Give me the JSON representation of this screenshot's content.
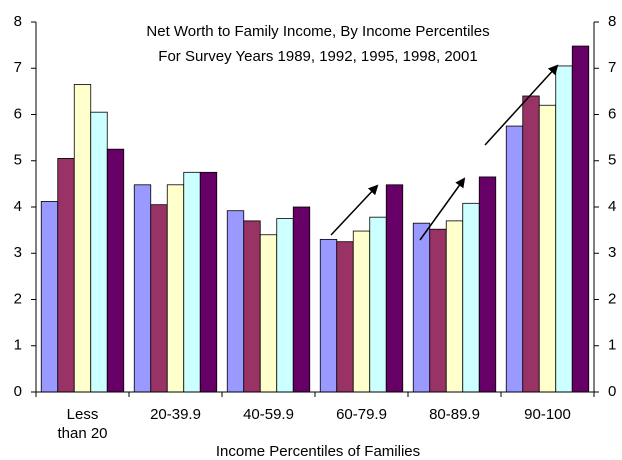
{
  "chart_data": {
    "type": "bar",
    "title": "Net Worth to Family Income,  By Income Percentiles",
    "subtitle": "For Survey Years 1989, 1992, 1995, 1998, 2001",
    "x_label": "Income Percentiles of Families",
    "categories": [
      "Less than 20",
      "20-39.9",
      "40-59.9",
      "60-79.9",
      "80-89.9",
      "90-100"
    ],
    "series": [
      {
        "color": "#9999ff",
        "values": [
          4.12,
          4.48,
          3.92,
          3.3,
          3.65,
          5.75
        ]
      },
      {
        "color": "#993366",
        "values": [
          5.05,
          4.05,
          3.7,
          3.25,
          3.52,
          6.4
        ]
      },
      {
        "color": "#ffffcc",
        "values": [
          6.65,
          4.48,
          3.4,
          3.48,
          3.7,
          6.2
        ]
      },
      {
        "color": "#ccffff",
        "values": [
          6.05,
          4.75,
          3.75,
          3.78,
          4.08,
          7.05
        ]
      },
      {
        "color": "#660066",
        "values": [
          5.25,
          4.75,
          4.0,
          4.48,
          4.65,
          7.48
        ]
      }
    ],
    "ylim": [
      0,
      8
    ],
    "yticks": [
      0,
      1,
      2,
      3,
      4,
      5,
      6,
      7,
      8
    ],
    "y2lim": [
      0,
      8
    ],
    "y2ticks": [
      0,
      1,
      2,
      3,
      4,
      5,
      6,
      7,
      8
    ]
  }
}
